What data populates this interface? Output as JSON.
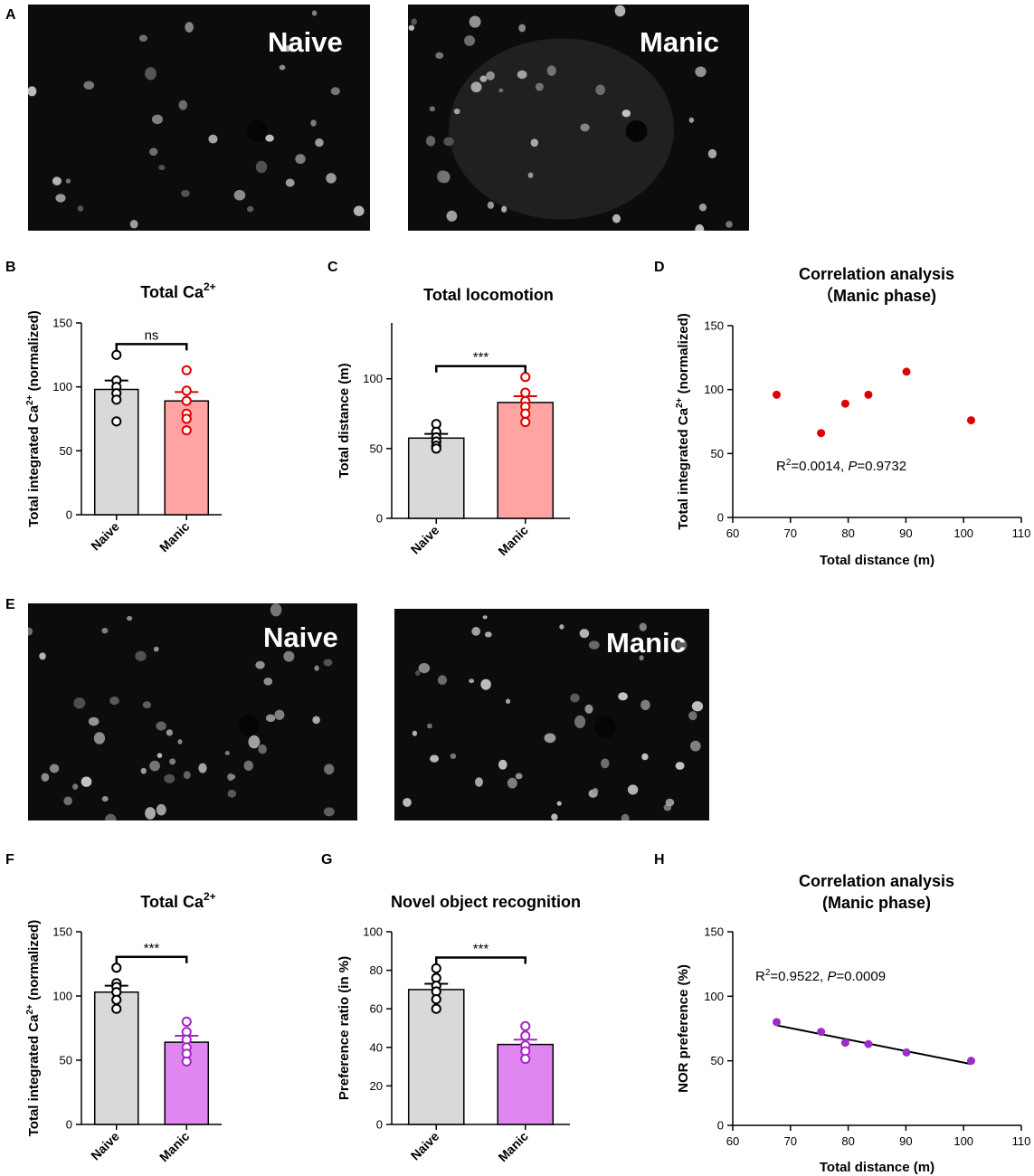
{
  "figure": {
    "panel_labels": {
      "A": "A",
      "B": "B",
      "C": "C",
      "D": "D",
      "E": "E",
      "F": "F",
      "G": "G",
      "H": "H"
    },
    "images": {
      "A_left": "Naive",
      "A_right": "Manic",
      "E_left": "Naive",
      "E_right": "Manic"
    }
  },
  "chart_data": [
    {
      "id": "B",
      "type": "bar",
      "title": "Total Ca",
      "title_sup": "2+",
      "ylabel": "Total integrated Ca",
      "ylabel_sup": "2+",
      "ylabel_tail": " (normalized)",
      "xlabel": "",
      "ylim": [
        0,
        150
      ],
      "yticks": [
        "0",
        "50",
        "100",
        "150"
      ],
      "categories": [
        "Naive",
        "Manic"
      ],
      "values": [
        98,
        89
      ],
      "sem": [
        7,
        7
      ],
      "points": [
        [
          125,
          105,
          100,
          95,
          90,
          73
        ],
        [
          113,
          97,
          89,
          79,
          75,
          66
        ]
      ],
      "colors": [
        "#d9d9d9",
        "#ffa3a3"
      ],
      "point_colors": [
        "#000000",
        "#e00000"
      ],
      "significance": "ns"
    },
    {
      "id": "C",
      "type": "bar",
      "title": "Total locomotion",
      "ylabel": "Total distance (m)",
      "xlabel": "",
      "ylim": [
        0,
        140
      ],
      "yticks": [
        "0",
        "50",
        "100"
      ],
      "categories": [
        "Naive",
        "Manic"
      ],
      "values": [
        57.5,
        83
      ],
      "sem": [
        3,
        4.5
      ],
      "points": [
        [
          67.6,
          62,
          58,
          55,
          52,
          50
        ],
        [
          101.3,
          90,
          84,
          80,
          75,
          69
        ]
      ],
      "colors": [
        "#d9d9d9",
        "#ffa3a3"
      ],
      "point_colors": [
        "#000000",
        "#e00000"
      ],
      "significance": "***"
    },
    {
      "id": "D",
      "type": "scatter",
      "title": "Correlation analysis",
      "subtitle": "（Manic phase)",
      "xlabel": "Total distance  (m)",
      "ylabel": "Total integrated Ca",
      "ylabel_sup": "2+",
      "ylabel_tail": " (normalized)",
      "xlim": [
        60,
        110
      ],
      "ylim": [
        0,
        150
      ],
      "xticks": [
        "60",
        "70",
        "80",
        "90",
        "100",
        "110"
      ],
      "yticks": [
        "0",
        "50",
        "100",
        "150"
      ],
      "x": [
        67.6,
        75.3,
        79.5,
        83.5,
        90.1,
        101.3
      ],
      "y": [
        96,
        66,
        89,
        96,
        114,
        76
      ],
      "point_color": "#e00000",
      "annotation": {
        "r_prefix": "R",
        "r_sup": "2",
        "r_value": "=0.0014, ",
        "p_label": "P",
        "p_value": "=0.9732"
      }
    },
    {
      "id": "F",
      "type": "bar",
      "title": "Total Ca",
      "title_sup": "2+",
      "ylabel": "Total integrated Ca",
      "ylabel_sup": "2+",
      "ylabel_tail": " (normalized)",
      "xlabel": "",
      "ylim": [
        0,
        150
      ],
      "yticks": [
        "0",
        "50",
        "100",
        "150"
      ],
      "categories": [
        "Naive",
        "Manic"
      ],
      "values": [
        103,
        64
      ],
      "sem": [
        5,
        5
      ],
      "points": [
        [
          122,
          110,
          107,
          103,
          97,
          90
        ],
        [
          80,
          72,
          66,
          60,
          55,
          49
        ]
      ],
      "colors": [
        "#d9d9d9",
        "#df86f0"
      ],
      "point_colors": [
        "#000000",
        "#a726c7"
      ],
      "significance": "***"
    },
    {
      "id": "G",
      "type": "bar",
      "title": "Novel object recognition",
      "ylabel": "Preference ratio (in %)",
      "xlabel": "",
      "ylim": [
        0,
        100
      ],
      "yticks": [
        "0",
        "20",
        "40",
        "60",
        "80",
        "100"
      ],
      "categories": [
        "Naive",
        "Manic"
      ],
      "values": [
        70,
        41.5
      ],
      "sem": [
        3,
        2.5
      ],
      "points": [
        [
          81,
          76,
          72,
          69,
          65,
          60
        ],
        [
          51,
          46,
          41,
          38,
          34
        ]
      ],
      "colors": [
        "#d9d9d9",
        "#df86f0"
      ],
      "point_colors": [
        "#000000",
        "#a726c7"
      ],
      "significance": "***"
    },
    {
      "id": "H",
      "type": "scatter",
      "title": "Correlation analysis",
      "subtitle": "(Manic phase)",
      "xlabel": "Total distance  (m)",
      "ylabel": "NOR preference  (%)",
      "xlim": [
        60,
        110
      ],
      "ylim": [
        0,
        150
      ],
      "xticks": [
        "60",
        "70",
        "80",
        "90",
        "100",
        "110"
      ],
      "yticks": [
        "0",
        "50",
        "100",
        "150"
      ],
      "x": [
        67.6,
        75.3,
        79.5,
        83.5,
        90.1,
        101.3
      ],
      "y": [
        80,
        72.5,
        64,
        63,
        56.5,
        50
      ],
      "point_color": "#9b2dc9",
      "fit_line": {
        "x": [
          67.6,
          101.3
        ],
        "y": [
          77.5,
          47.5
        ]
      },
      "annotation": {
        "r_prefix": "R",
        "r_sup": "2",
        "r_value": "=0.9522, ",
        "p_label": "P",
        "p_value": "=0.0009"
      }
    }
  ]
}
